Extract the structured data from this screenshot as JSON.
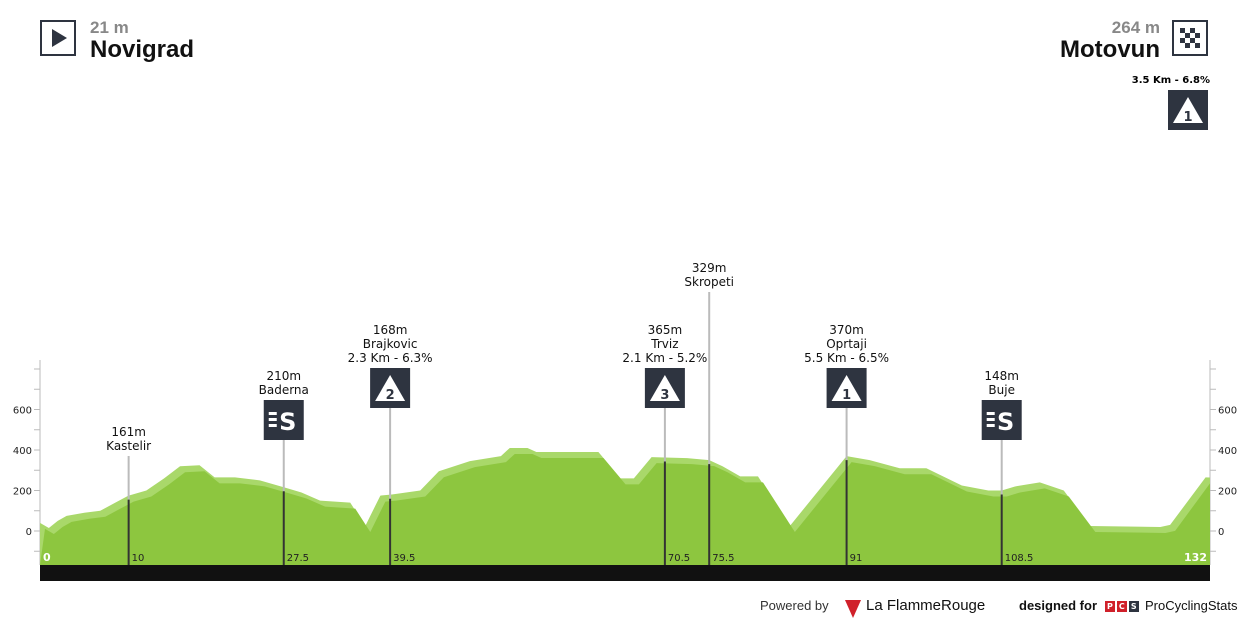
{
  "start": {
    "altitude": "21 m",
    "city": "Novigrad",
    "icon": "play-icon"
  },
  "finish": {
    "altitude": "264 m",
    "city": "Motovun",
    "icon": "checkered-flag-icon",
    "climb_label": "3.5 Km - 6.8%",
    "climb_category": "1"
  },
  "chart_data": {
    "type": "area",
    "xlim": [
      0,
      132
    ],
    "ylim": [
      -170,
      850
    ],
    "yticks": [
      0,
      200,
      400,
      600
    ],
    "profile": [
      [
        0,
        40
      ],
      [
        1,
        15
      ],
      [
        2,
        50
      ],
      [
        3,
        75
      ],
      [
        5,
        90
      ],
      [
        6.8,
        100
      ],
      [
        8.5,
        140
      ],
      [
        10,
        175
      ],
      [
        12,
        200
      ],
      [
        14,
        260
      ],
      [
        15.8,
        320
      ],
      [
        18,
        325
      ],
      [
        19.7,
        265
      ],
      [
        22,
        265
      ],
      [
        24.8,
        250
      ],
      [
        27.6,
        215
      ],
      [
        29.5,
        190
      ],
      [
        31.6,
        150
      ],
      [
        35,
        140
      ],
      [
        36.7,
        25
      ],
      [
        38.4,
        175
      ],
      [
        39.7,
        180
      ],
      [
        42.9,
        200
      ],
      [
        45,
        295
      ],
      [
        48.5,
        345
      ],
      [
        52,
        370
      ],
      [
        53,
        410
      ],
      [
        55,
        410
      ],
      [
        56,
        390
      ],
      [
        63,
        390
      ],
      [
        65.5,
        260
      ],
      [
        67,
        260
      ],
      [
        69,
        365
      ],
      [
        73,
        360
      ],
      [
        75.5,
        350
      ],
      [
        77,
        320
      ],
      [
        79,
        270
      ],
      [
        81,
        270
      ],
      [
        84.6,
        25
      ],
      [
        91,
        370
      ],
      [
        93.6,
        350
      ],
      [
        97,
        310
      ],
      [
        100,
        310
      ],
      [
        104,
        225
      ],
      [
        107,
        200
      ],
      [
        108.5,
        200
      ],
      [
        110,
        220
      ],
      [
        112.8,
        240
      ],
      [
        115.5,
        200
      ],
      [
        118.5,
        25
      ],
      [
        126.4,
        20
      ],
      [
        127.5,
        30
      ],
      [
        131.5,
        265
      ],
      [
        132,
        264
      ]
    ],
    "km_labels": [
      "0",
      "132"
    ],
    "points": [
      {
        "km": 10,
        "km_label": "10",
        "lines": [
          "161m",
          "Kastelir"
        ],
        "icon": ""
      },
      {
        "km": 27.5,
        "km_label": "27.5",
        "lines": [
          "210m",
          "Baderna"
        ],
        "icon": "sprint"
      },
      {
        "km": 39.5,
        "km_label": "39.5",
        "lines": [
          "168m",
          "Brajkovic",
          "2.3 Km - 6.3%"
        ],
        "icon": "climb",
        "cat": "2"
      },
      {
        "km": 70.5,
        "km_label": "70.5",
        "lines": [
          "365m",
          "Trviz",
          "2.1 Km - 5.2%"
        ],
        "icon": "climb",
        "cat": "3"
      },
      {
        "km": 75.5,
        "km_label": "75.5",
        "lines": [
          "329m",
          "Skropeti"
        ],
        "icon": "",
        "tall": true
      },
      {
        "km": 91,
        "km_label": "91",
        "lines": [
          "370m",
          "Oprtaji",
          "5.5 Km - 6.5%"
        ],
        "icon": "climb",
        "cat": "1"
      },
      {
        "km": 108.5,
        "km_label": "108.5",
        "lines": [
          "148m",
          "Buje"
        ],
        "icon": "sprint"
      }
    ],
    "colors": {
      "profile": "#8dc63f",
      "highlight": "#a9d86a",
      "base": "#111111",
      "marker": "#2e3440"
    }
  },
  "footer": {
    "powered_by": "Powered by",
    "brand": "La FlammeRouge",
    "designed_for": "designed for",
    "pcs": "ProCyclingStats",
    "pcs_badge": "PCS"
  }
}
